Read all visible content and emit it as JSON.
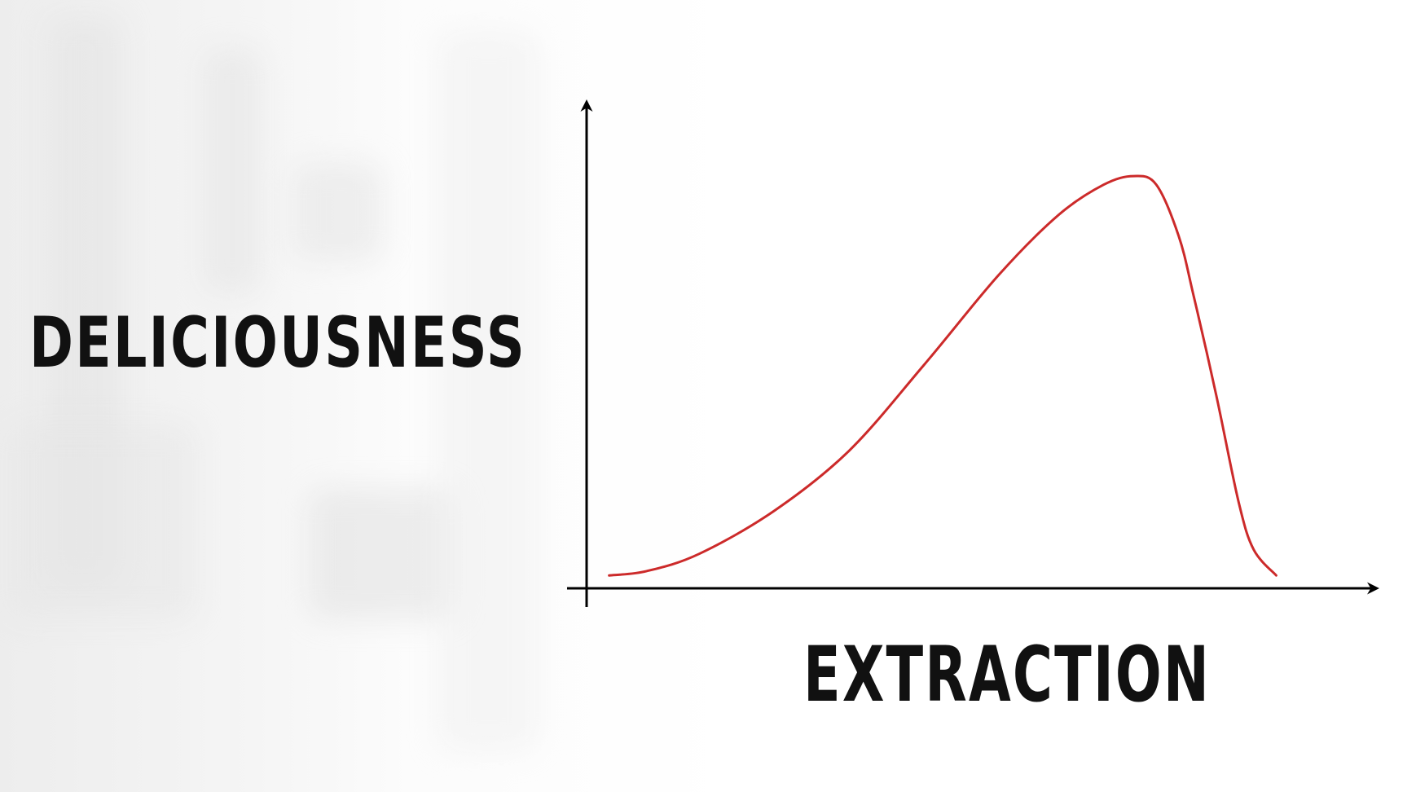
{
  "chart_data": {
    "type": "line",
    "title": "",
    "xlabel": "EXTRACTION",
    "ylabel": "DELICIOUSNESS",
    "grid": false,
    "legend": "none",
    "xlim": [
      0,
      1
    ],
    "ylim": [
      0,
      1
    ],
    "series": [
      {
        "color": "#cc2a2a",
        "x": [
          0.03,
          0.08,
          0.15,
          0.25,
          0.35,
          0.45,
          0.55,
          0.63,
          0.69,
          0.73,
          0.76,
          0.79,
          0.81,
          0.84,
          0.87,
          0.89,
          0.92
        ],
        "y": [
          0.03,
          0.04,
          0.08,
          0.18,
          0.32,
          0.52,
          0.73,
          0.87,
          0.94,
          0.96,
          0.94,
          0.82,
          0.68,
          0.45,
          0.2,
          0.09,
          0.03
        ]
      }
    ],
    "axis_color": "#000000",
    "text_color": "#111111"
  }
}
